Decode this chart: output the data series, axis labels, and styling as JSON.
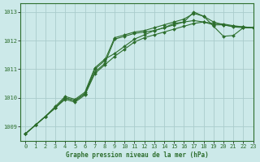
{
  "title": "Graphe pression niveau de la mer (hPa)",
  "background_color": "#cce9e9",
  "grid_color": "#aacccc",
  "line_color": "#2d6e2d",
  "xlim": [
    -0.5,
    23
  ],
  "ylim": [
    1008.5,
    1013.3
  ],
  "yticks": [
    1009,
    1010,
    1011,
    1012,
    1013
  ],
  "xticks": [
    0,
    1,
    2,
    3,
    4,
    5,
    6,
    7,
    8,
    9,
    10,
    11,
    12,
    13,
    14,
    15,
    16,
    17,
    18,
    19,
    20,
    21,
    22,
    23
  ],
  "series": [
    [
      1008.75,
      1009.05,
      1009.35,
      1009.65,
      1009.95,
      1009.85,
      1010.1,
      1010.85,
      1011.15,
      1011.45,
      1011.7,
      1011.95,
      1012.1,
      1012.2,
      1012.3,
      1012.4,
      1012.5,
      1012.6,
      1012.65,
      1012.55,
      1012.55,
      1012.48,
      1012.45,
      1012.45
    ],
    [
      1008.75,
      1009.05,
      1009.35,
      1009.65,
      1010.0,
      1009.9,
      1010.15,
      1010.9,
      1011.2,
      1012.05,
      1012.15,
      1012.25,
      1012.3,
      1012.35,
      1012.45,
      1012.55,
      1012.65,
      1012.7,
      1012.65,
      1012.6,
      1012.58,
      1012.52,
      1012.48,
      1012.45
    ],
    [
      1008.75,
      1009.05,
      1009.35,
      1009.65,
      1010.0,
      1009.9,
      1010.15,
      1011.0,
      1011.3,
      1012.1,
      1012.2,
      1012.3,
      1012.35,
      1012.45,
      1012.55,
      1012.65,
      1012.75,
      1012.95,
      1012.85,
      1012.65,
      1012.55,
      1012.5,
      1012.48,
      1012.45
    ],
    [
      1008.75,
      1009.05,
      1009.35,
      1009.7,
      1010.05,
      1009.95,
      1010.2,
      1011.05,
      1011.35,
      1011.55,
      1011.8,
      1012.05,
      1012.2,
      1012.35,
      1012.45,
      1012.6,
      1012.65,
      1013.0,
      1012.85,
      1012.5,
      1012.15,
      1012.18,
      1012.45,
      1012.45
    ]
  ]
}
